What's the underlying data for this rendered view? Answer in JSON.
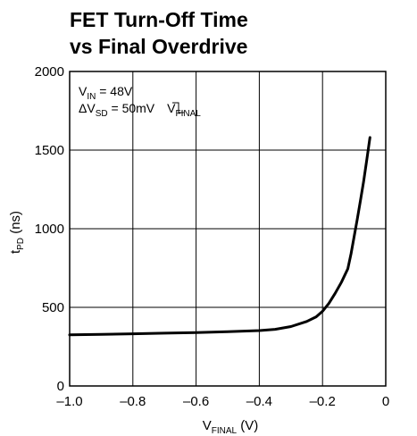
{
  "chart_data": {
    "type": "line",
    "title_line1": "FET Turn-Off Time",
    "title_line2": "vs Final Overdrive",
    "xlabel": {
      "main": "V",
      "sub": "FINAL",
      "unit": " (V)"
    },
    "ylabel": {
      "main": "t",
      "sub": "PD",
      "unit": " (ns)"
    },
    "xlim": [
      -1.0,
      0
    ],
    "ylim": [
      0,
      2000
    ],
    "x_ticks": [
      -1.0,
      -0.8,
      -0.6,
      -0.4,
      -0.2,
      0
    ],
    "x_tick_labels": [
      "–1.0",
      "–0.8",
      "–0.6",
      "–0.4",
      "–0.2",
      "0"
    ],
    "y_ticks": [
      0,
      500,
      1000,
      1500,
      2000
    ],
    "y_tick_labels": [
      "0",
      "500",
      "1000",
      "1500",
      "2000"
    ],
    "grid": true,
    "annotations": {
      "line1": {
        "main": "V",
        "sub": "IN",
        "rest": " = 48V"
      },
      "line2": {
        "main": "ΔV",
        "sub": "SD",
        "rest": " = 50mV",
        "tail_main": "V",
        "tail_sub": "FINAL"
      }
    },
    "series": [
      {
        "x": [
          -1.0,
          -0.9,
          -0.8,
          -0.7,
          -0.6,
          -0.5,
          -0.4,
          -0.35,
          -0.3,
          -0.25,
          -0.22,
          -0.2,
          -0.18,
          -0.16,
          -0.14,
          -0.12,
          -0.11,
          -0.1,
          -0.09,
          -0.08,
          -0.07,
          -0.06,
          -0.05
        ],
        "y": [
          325,
          328,
          332,
          336,
          340,
          345,
          352,
          360,
          378,
          410,
          440,
          475,
          525,
          590,
          660,
          745,
          840,
          950,
          1060,
          1180,
          1300,
          1440,
          1580
        ]
      }
    ]
  }
}
